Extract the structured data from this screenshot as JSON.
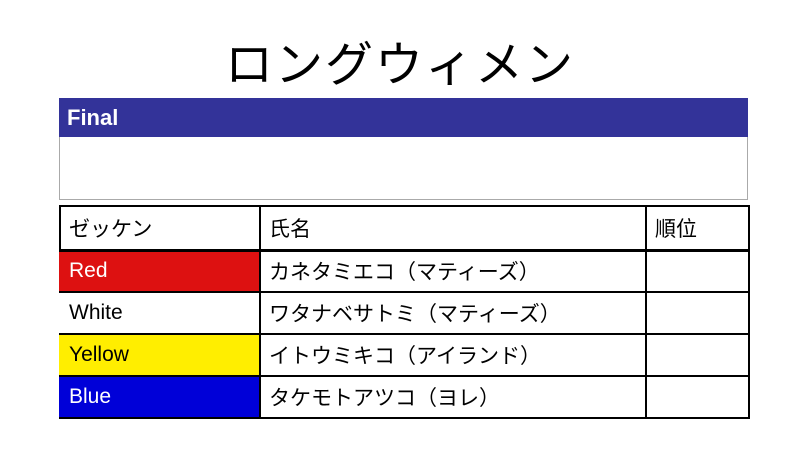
{
  "title": "ロングウィメン",
  "final_section": {
    "label": "Final",
    "notes": ""
  },
  "colors": {
    "final_bar_bg": "#333399",
    "final_bar_text": "#ffffff",
    "red": "#dd1111",
    "white": "#ffffff",
    "yellow": "#ffee00",
    "blue": "#0000d8",
    "table_border": "#000000"
  },
  "results_table": {
    "columns": [
      {
        "key": "bib",
        "label": "ゼッケン"
      },
      {
        "key": "name",
        "label": "氏名"
      },
      {
        "key": "rank",
        "label": "順位"
      }
    ],
    "rows": [
      {
        "bib": "Red",
        "name": "カネタミエコ（マティーズ）",
        "rank": "",
        "colors": {
          "bg": "#dd1111",
          "text": "#ffffff"
        }
      },
      {
        "bib": "White",
        "name": "ワタナベサトミ（マティーズ）",
        "rank": "",
        "colors": {
          "bg": "#ffffff",
          "text": "#000000"
        }
      },
      {
        "bib": "Yellow",
        "name": "イトウミキコ（アイランド）",
        "rank": "",
        "colors": {
          "bg": "#ffee00",
          "text": "#000000"
        }
      },
      {
        "bib": "Blue",
        "name": "タケモトアツコ（ヨレ）",
        "rank": "",
        "colors": {
          "bg": "#0000d8",
          "text": "#ffffff"
        }
      }
    ]
  }
}
